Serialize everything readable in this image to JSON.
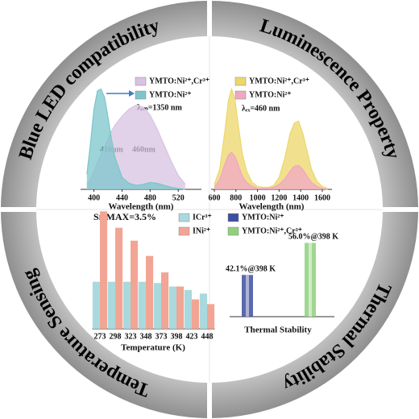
{
  "ring_labels": [
    "Blue LED compatibility",
    "Luminescence Property",
    "Thermal Stability",
    "Temperature Sensing"
  ],
  "chart_data": [
    {
      "type": "area",
      "x": [
        390,
        395,
        400,
        405,
        410,
        415,
        420,
        425,
        430,
        440,
        450,
        460,
        470,
        480,
        490,
        500,
        510,
        520,
        530
      ],
      "series": [
        {
          "name": "YMTO:Ni²⁺,Cr³⁺",
          "color": "#d8c3e2",
          "values": [
            0.05,
            0.1,
            0.18,
            0.27,
            0.35,
            0.42,
            0.5,
            0.58,
            0.64,
            0.73,
            0.8,
            0.84,
            0.82,
            0.74,
            0.6,
            0.44,
            0.28,
            0.14,
            0.05
          ]
        },
        {
          "name": "YMTO:Ni²⁺",
          "color": "#7cc6cb",
          "values": [
            0.15,
            0.45,
            0.8,
            0.98,
            1.0,
            0.92,
            0.72,
            0.5,
            0.32,
            0.12,
            0.06,
            0.04,
            0.05,
            0.07,
            0.06,
            0.04,
            0.02,
            0.01,
            0.0
          ]
        }
      ],
      "annotations": [
        "λₑₘ=1350 nm",
        "410nm",
        "460nm"
      ],
      "xlabel": "Wavelength (nm)",
      "xlim": [
        381,
        553
      ],
      "xticks": [
        400,
        440,
        480,
        520
      ],
      "ylim": [
        0,
        1.1
      ]
    },
    {
      "type": "area",
      "x": [
        600,
        650,
        700,
        730,
        760,
        790,
        820,
        860,
        900,
        950,
        1000,
        1050,
        1100,
        1150,
        1200,
        1250,
        1300,
        1340,
        1380,
        1420,
        1460,
        1500,
        1550,
        1600,
        1650
      ],
      "series": [
        {
          "name": "YMTO:Ni²⁺,Cr³⁺",
          "color": "#ecd76a",
          "values": [
            0.05,
            0.2,
            0.6,
            0.88,
            1.0,
            0.9,
            0.65,
            0.35,
            0.18,
            0.07,
            0.03,
            0.02,
            0.02,
            0.04,
            0.12,
            0.3,
            0.55,
            0.66,
            0.68,
            0.56,
            0.38,
            0.2,
            0.08,
            0.03,
            0.01
          ]
        },
        {
          "name": "YMTO:Ni²⁺",
          "color": "#f0a7c4",
          "values": [
            0.02,
            0.1,
            0.26,
            0.34,
            0.37,
            0.33,
            0.25,
            0.13,
            0.07,
            0.03,
            0.01,
            0.01,
            0.01,
            0.02,
            0.05,
            0.1,
            0.18,
            0.23,
            0.24,
            0.2,
            0.13,
            0.07,
            0.03,
            0.01,
            0.0
          ]
        }
      ],
      "annotations": [
        "λₑₓ=460 nm"
      ],
      "xlabel": "Wavelength (nm)",
      "xlim": [
        570,
        1690
      ],
      "xticks": [
        600,
        800,
        1000,
        1200,
        1400,
        1600
      ],
      "ylim": [
        0,
        1.1
      ]
    },
    {
      "type": "bar",
      "categories": [
        273,
        298,
        323,
        348,
        373,
        398,
        423,
        448
      ],
      "series": [
        {
          "name": "ICr³⁺",
          "color": "#a9d9dd",
          "values": [
            0.4,
            0.4,
            0.4,
            0.4,
            0.39,
            0.36,
            0.33,
            0.3
          ]
        },
        {
          "name": "INi²⁺",
          "color": "#f2a594",
          "values": [
            1.0,
            0.86,
            0.75,
            0.62,
            0.48,
            0.36,
            0.25,
            0.21
          ]
        }
      ],
      "annotations": [
        "Sr-MAX=3.5%"
      ],
      "xlabel": "Temperature (K)",
      "ylim": [
        0,
        1.05
      ]
    },
    {
      "type": "bar",
      "series": [
        {
          "name": "YMTO:Ni²⁺",
          "color": "#3f4f9f",
          "values": [
            42.1
          ],
          "value_labels": [
            "42.1%@398 K"
          ]
        },
        {
          "name": "YMTO:Ni²⁺,Cr³⁺",
          "color": "#8fd07c",
          "values": [
            56.0
          ],
          "value_labels": [
            "56.0%@398 K"
          ]
        }
      ],
      "xlabel": "Thermal Stability",
      "ylim": [
        24,
        60
      ]
    }
  ]
}
